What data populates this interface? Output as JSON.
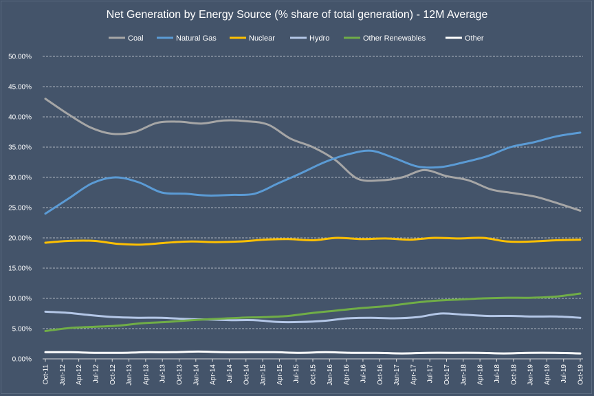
{
  "chart_data": {
    "type": "line",
    "title": "Net Generation by Energy Source (% share of total generation) - 12M Average",
    "xlabel": "",
    "ylabel": "",
    "ylim": [
      0,
      50
    ],
    "y_ticks": [
      "0.00%",
      "5.00%",
      "10.00%",
      "15.00%",
      "20.00%",
      "25.00%",
      "30.00%",
      "35.00%",
      "40.00%",
      "45.00%",
      "50.00%"
    ],
    "x_tick_labels": [
      "Oct-11",
      "Jan-12",
      "Apr-12",
      "Jul-12",
      "Oct-12",
      "Jan-13",
      "Apr-13",
      "Jul-13",
      "Oct-13",
      "Jan-14",
      "Apr-14",
      "Jul-14",
      "Oct-14",
      "Jan-15",
      "Apr-15",
      "Jul-15",
      "Oct-15",
      "Jan-16",
      "Apr-16",
      "Jul-16",
      "Oct-16",
      "Jan-17",
      "Apr-17",
      "Jul-17",
      "Oct-17",
      "Jan-18",
      "Apr-18",
      "Jul-18",
      "Oct-18",
      "Jan-19",
      "Apr-19",
      "Jul-19",
      "Oct-19"
    ],
    "grid": true,
    "legend": "top",
    "series": [
      {
        "name": "Coal",
        "color": "#a6a6a6",
        "values": [
          43.0,
          40.5,
          38.3,
          37.2,
          37.5,
          39.0,
          39.2,
          38.9,
          39.4,
          39.3,
          38.7,
          36.4,
          35.0,
          32.9,
          29.8,
          29.5,
          30.0,
          31.2,
          30.2,
          29.5,
          28.0,
          27.4,
          26.8,
          25.7,
          24.5
        ]
      },
      {
        "name": "Natural Gas",
        "color": "#5b9bd5",
        "values": [
          24.0,
          26.5,
          29.0,
          30.0,
          29.2,
          27.5,
          27.3,
          27.0,
          27.1,
          27.3,
          29.0,
          30.7,
          32.5,
          33.8,
          34.4,
          33.2,
          31.8,
          31.7,
          32.5,
          33.5,
          35.0,
          35.8,
          36.8,
          37.4
        ]
      },
      {
        "name": "Nuclear",
        "color": "#ffc000",
        "values": [
          19.2,
          19.5,
          19.5,
          19.0,
          18.9,
          19.2,
          19.4,
          19.3,
          19.4,
          19.7,
          19.8,
          19.6,
          20.0,
          19.8,
          19.9,
          19.7,
          20.0,
          19.9,
          20.0,
          19.4,
          19.4,
          19.6,
          19.7
        ]
      },
      {
        "name": "Hydro",
        "color": "#b4c7e7",
        "values": [
          7.8,
          7.6,
          7.2,
          6.9,
          6.8,
          6.8,
          6.6,
          6.5,
          6.4,
          6.4,
          6.1,
          6.1,
          6.3,
          6.7,
          6.8,
          6.7,
          6.9,
          7.5,
          7.3,
          7.1,
          7.1,
          7.0,
          7.0,
          6.8
        ]
      },
      {
        "name": "Other Renewables",
        "color": "#70ad47",
        "values": [
          4.6,
          5.1,
          5.3,
          5.5,
          5.9,
          6.1,
          6.4,
          6.6,
          6.8,
          6.9,
          7.1,
          7.6,
          8.0,
          8.4,
          8.7,
          9.2,
          9.6,
          9.8,
          10.0,
          10.1,
          10.1,
          10.3,
          10.8
        ]
      },
      {
        "name": "Other",
        "color": "#ffffff",
        "values": [
          1.1,
          1.1,
          1.0,
          1.0,
          1.1,
          1.1,
          1.2,
          1.1,
          1.1,
          1.1,
          1.0,
          1.1,
          1.0,
          1.0,
          0.9,
          1.0,
          1.0,
          1.0,
          0.9,
          1.0,
          1.0,
          0.9
        ]
      }
    ]
  }
}
